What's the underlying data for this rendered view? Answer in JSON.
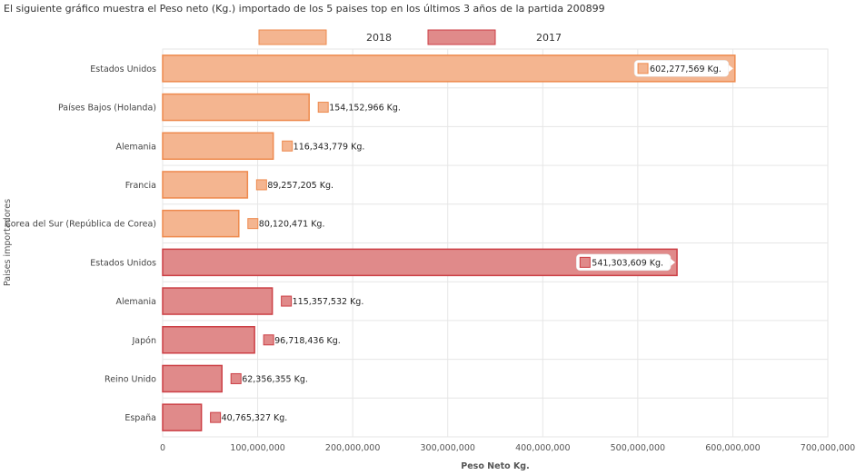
{
  "title": "El siguiente gráfico muestra el Peso neto (Kg.) importado de los 5 paises top en los últimos 3 años de la partida 200899",
  "chart_data": {
    "type": "bar",
    "orientation": "horizontal",
    "xlabel": "Peso Neto Kg.",
    "ylabel": "Paises importadores",
    "xlim": [
      0,
      700000000
    ],
    "xticks": [
      "0",
      "100,000,000",
      "200,000,000",
      "300,000,000",
      "400,000,000",
      "500,000,000",
      "600,000,000",
      "700,000,000"
    ],
    "grid": true,
    "legend_position": "top",
    "series": [
      {
        "name": "2018",
        "color": "#f4b590",
        "border": "#ee8a4e",
        "categories": [
          "Estados Unidos",
          "Países Bajos (Holanda)",
          "Alemania",
          "Francia",
          "Corea del Sur (República de Corea)"
        ],
        "values": [
          602277569,
          154152966,
          116343779,
          89257205,
          80120471
        ],
        "labels": [
          "602,277,569 Kg.",
          "154,152,966 Kg.",
          "116,343,779 Kg.",
          "89,257,205 Kg.",
          "80,120,471 Kg."
        ]
      },
      {
        "name": "2017",
        "color": "#e08a8a",
        "border": "#cc3f45",
        "categories": [
          "Estados Unidos",
          "Alemania",
          "Japón",
          "Reino Unido",
          "España"
        ],
        "values": [
          541303609,
          115357532,
          96718436,
          62356355,
          40765327
        ],
        "labels": [
          "541,303,609 Kg.",
          "115,357,532 Kg.",
          "96,718,436 Kg.",
          "62,356,355 Kg.",
          "40,765,327 Kg."
        ]
      }
    ]
  }
}
